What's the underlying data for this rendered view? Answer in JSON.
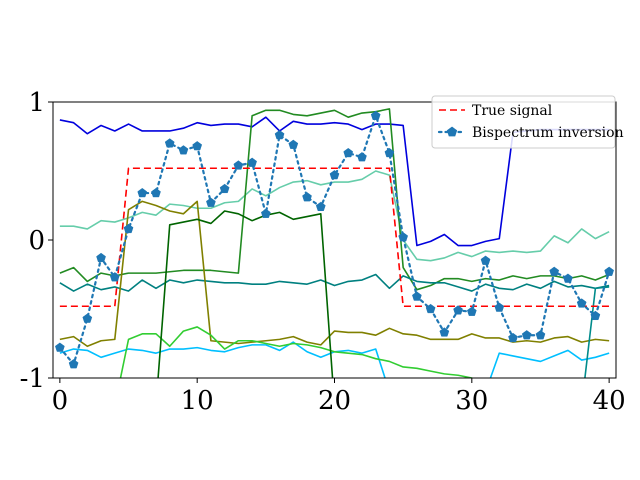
{
  "chart_data": {
    "type": "line",
    "title": "",
    "xlabel": "",
    "ylabel": "",
    "xlim": [
      -0.5,
      40.5
    ],
    "ylim": [
      -1,
      1
    ],
    "xticks": [
      0,
      10,
      20,
      30,
      40
    ],
    "yticks": [
      -1,
      0,
      1
    ],
    "xtick_labels": [
      "0",
      "10",
      "20",
      "30",
      "40"
    ],
    "ytick_labels": [
      "-1",
      "0",
      "1"
    ],
    "grid": false,
    "legend_position": "top-right",
    "legend": [
      {
        "label": "True signal",
        "color": "#ff0000",
        "style": "dashed",
        "marker": "none"
      },
      {
        "label": "Bispectrum inversion",
        "color": "#1f77b4",
        "style": "dotted",
        "marker": "pentagon"
      }
    ],
    "x": [
      0,
      1,
      2,
      3,
      4,
      5,
      6,
      7,
      8,
      9,
      10,
      11,
      12,
      13,
      14,
      15,
      16,
      17,
      18,
      19,
      20,
      21,
      22,
      23,
      24,
      25,
      26,
      27,
      28,
      29,
      30,
      31,
      32,
      33,
      34,
      35,
      36,
      37,
      38,
      39,
      40
    ],
    "series": [
      {
        "name": "True signal",
        "color": "#ff0000",
        "style": "dashed",
        "marker": "none",
        "values": [
          -0.48,
          -0.48,
          -0.48,
          -0.48,
          -0.48,
          0.52,
          0.52,
          0.52,
          0.52,
          0.52,
          0.52,
          0.52,
          0.52,
          0.52,
          0.52,
          0.52,
          0.52,
          0.52,
          0.52,
          0.52,
          0.52,
          0.52,
          0.52,
          0.52,
          0.52,
          -0.48,
          -0.48,
          -0.48,
          -0.48,
          -0.48,
          -0.48,
          -0.48,
          -0.48,
          -0.48,
          -0.48,
          -0.48,
          -0.48,
          -0.48,
          -0.48,
          -0.48,
          -0.48
        ]
      },
      {
        "name": "Bispectrum inversion",
        "color": "#1f77b4",
        "style": "dotted",
        "marker": "pentagon",
        "values": [
          -0.78,
          -0.9,
          -0.57,
          -0.13,
          -0.27,
          0.08,
          0.34,
          0.34,
          0.7,
          0.65,
          0.68,
          0.27,
          0.37,
          0.54,
          0.56,
          0.19,
          0.76,
          0.69,
          0.31,
          0.24,
          0.47,
          0.63,
          0.6,
          0.9,
          0.63,
          0.02,
          -0.41,
          -0.5,
          -0.67,
          -0.51,
          -0.52,
          -0.15,
          -0.49,
          -0.71,
          -0.69,
          -0.69,
          -0.23,
          -0.28,
          -0.46,
          -0.55,
          -0.23
        ]
      },
      {
        "color": "#0000dd",
        "style": "solid",
        "marker": "none",
        "values": [
          0.87,
          0.85,
          0.77,
          0.83,
          0.79,
          0.84,
          0.79,
          0.79,
          0.79,
          0.81,
          0.85,
          0.83,
          0.84,
          0.84,
          0.82,
          0.89,
          0.79,
          0.86,
          0.84,
          0.84,
          0.85,
          0.84,
          0.8,
          0.84,
          0.84,
          0.83,
          -0.04,
          -0.01,
          0.04,
          -0.04,
          -0.04,
          -0.01,
          0.01,
          0.78,
          0.79,
          0.8,
          0.8,
          0.8,
          0.8,
          0.8,
          0.8
        ]
      },
      {
        "color": "#66cdaa",
        "style": "solid",
        "marker": "none",
        "values": [
          0.1,
          0.1,
          0.08,
          0.14,
          0.13,
          0.16,
          0.2,
          0.18,
          0.26,
          0.25,
          0.23,
          0.23,
          0.27,
          0.28,
          0.37,
          0.32,
          0.38,
          0.42,
          0.43,
          0.4,
          0.42,
          0.42,
          0.44,
          0.5,
          0.47,
          0.0,
          -0.14,
          -0.15,
          -0.13,
          -0.09,
          -0.12,
          -0.08,
          -0.09,
          -0.08,
          -0.09,
          -0.08,
          0.03,
          -0.02,
          0.08,
          0.01,
          0.06
        ]
      },
      {
        "color": "#228b22",
        "style": "solid",
        "marker": "none",
        "values": [
          -0.24,
          -0.2,
          -0.3,
          -0.24,
          -0.26,
          -0.24,
          -0.24,
          -0.24,
          -0.23,
          -0.22,
          -0.22,
          -0.22,
          -0.23,
          -0.24,
          0.9,
          0.94,
          0.94,
          0.91,
          0.9,
          0.92,
          0.94,
          0.89,
          0.92,
          0.93,
          0.95,
          -0.2,
          -0.36,
          -0.33,
          -0.28,
          -0.28,
          -0.3,
          -0.28,
          -0.29,
          -0.26,
          -0.28,
          -0.26,
          -0.26,
          -0.28,
          -0.26,
          -0.29,
          -0.25
        ]
      },
      {
        "color": "#008080",
        "style": "solid",
        "marker": "none",
        "values": [
          -0.31,
          -0.37,
          -0.32,
          -0.36,
          -0.34,
          -0.37,
          -0.29,
          -0.35,
          -0.29,
          -0.31,
          -0.29,
          -0.3,
          -0.31,
          -0.31,
          -0.32,
          -0.32,
          -0.3,
          -0.31,
          -0.32,
          -0.29,
          -0.33,
          -0.3,
          -0.29,
          -0.25,
          -0.35,
          -0.26,
          -0.3,
          -0.31,
          -0.31,
          -0.34,
          -0.37,
          -0.32,
          -0.35,
          -0.36,
          -0.32,
          -0.35,
          -0.3,
          -0.34,
          -0.33,
          -0.35,
          -0.33
        ]
      },
      {
        "color": "#808000",
        "style": "solid",
        "marker": "none",
        "values": [
          -0.72,
          -0.7,
          -0.77,
          -0.73,
          -0.72,
          0.22,
          0.28,
          0.25,
          0.21,
          0.19,
          0.28,
          -0.73,
          -0.74,
          -0.75,
          -0.74,
          -0.73,
          -0.72,
          -0.7,
          -0.74,
          -0.76,
          -0.66,
          -0.67,
          -0.67,
          -0.69,
          -0.64,
          -0.68,
          -0.69,
          -0.72,
          -0.72,
          -0.72,
          -0.68,
          -0.71,
          -0.71,
          -0.74,
          -0.73,
          -0.74,
          -0.71,
          -0.7,
          -0.74,
          -0.72,
          -0.73
        ]
      },
      {
        "color": "#00bfff",
        "style": "solid",
        "marker": "none",
        "values": [
          -0.82,
          -0.79,
          -0.8,
          -0.85,
          -0.82,
          -0.79,
          -0.8,
          -0.82,
          -0.79,
          -0.79,
          -0.78,
          -0.8,
          -0.81,
          -0.78,
          -0.76,
          -0.76,
          -0.8,
          -0.74,
          -0.81,
          -0.85,
          -0.81,
          -0.8,
          -0.82,
          -0.79,
          -1.1,
          -1.1,
          -1.1,
          -1.1,
          -1.1,
          -1.1,
          -1.1,
          -1.1,
          -0.82,
          -0.84,
          -0.86,
          -0.88,
          -0.84,
          -0.8,
          -0.87,
          -0.85,
          -0.82
        ]
      },
      {
        "color": "#32cd32",
        "style": "solid",
        "marker": "none",
        "values": [
          -1.2,
          -1.2,
          -1.2,
          -1.2,
          -1.2,
          -0.72,
          -0.68,
          -0.68,
          -0.77,
          -0.66,
          -0.63,
          -0.69,
          -0.79,
          -0.73,
          -0.73,
          -0.75,
          -0.77,
          -0.75,
          -0.76,
          -0.78,
          -0.81,
          -0.82,
          -0.83,
          -0.86,
          -0.88,
          -0.92,
          -0.93,
          -0.95,
          -0.97,
          -0.98,
          -1.0,
          -1.2,
          -1.2,
          -1.2,
          -1.2,
          -1.2,
          -1.2,
          -1.2,
          -1.2,
          -1.2,
          -1.2
        ]
      },
      {
        "color": "#006400",
        "style": "solid",
        "marker": "none",
        "values": [
          -1.2,
          -1.2,
          -1.2,
          -1.2,
          -1.2,
          -1.2,
          -1.2,
          -1.2,
          0.11,
          0.13,
          0.15,
          0.12,
          0.21,
          0.19,
          0.14,
          0.18,
          0.2,
          0.15,
          0.17,
          0.19,
          -1.2,
          -1.2,
          -1.2,
          -1.2,
          -1.2,
          -1.2,
          -1.2,
          -1.2,
          -1.2,
          -1.2,
          -1.2,
          -1.2,
          -1.2,
          -1.2,
          -1.2,
          -1.2,
          -1.2,
          -1.2,
          -1.2,
          -1.2,
          -1.2
        ]
      },
      {
        "color": "#008b8b",
        "style": "solid",
        "marker": "none",
        "values": [
          -1.2,
          -1.2,
          -1.2,
          -1.2,
          -1.2,
          -1.2,
          -1.2,
          -1.2,
          -1.2,
          -1.2,
          -1.2,
          -1.2,
          -1.2,
          -1.2,
          -1.2,
          -1.2,
          -1.2,
          -1.2,
          -1.2,
          -1.2,
          -1.2,
          -1.2,
          -1.2,
          -1.2,
          -1.2,
          -1.2,
          -1.2,
          -1.2,
          -1.2,
          -1.2,
          -1.2,
          -1.2,
          -1.2,
          -1.2,
          -1.2,
          -1.2,
          -1.2,
          -1.2,
          -1.2,
          -0.35,
          -0.34
        ]
      }
    ]
  }
}
